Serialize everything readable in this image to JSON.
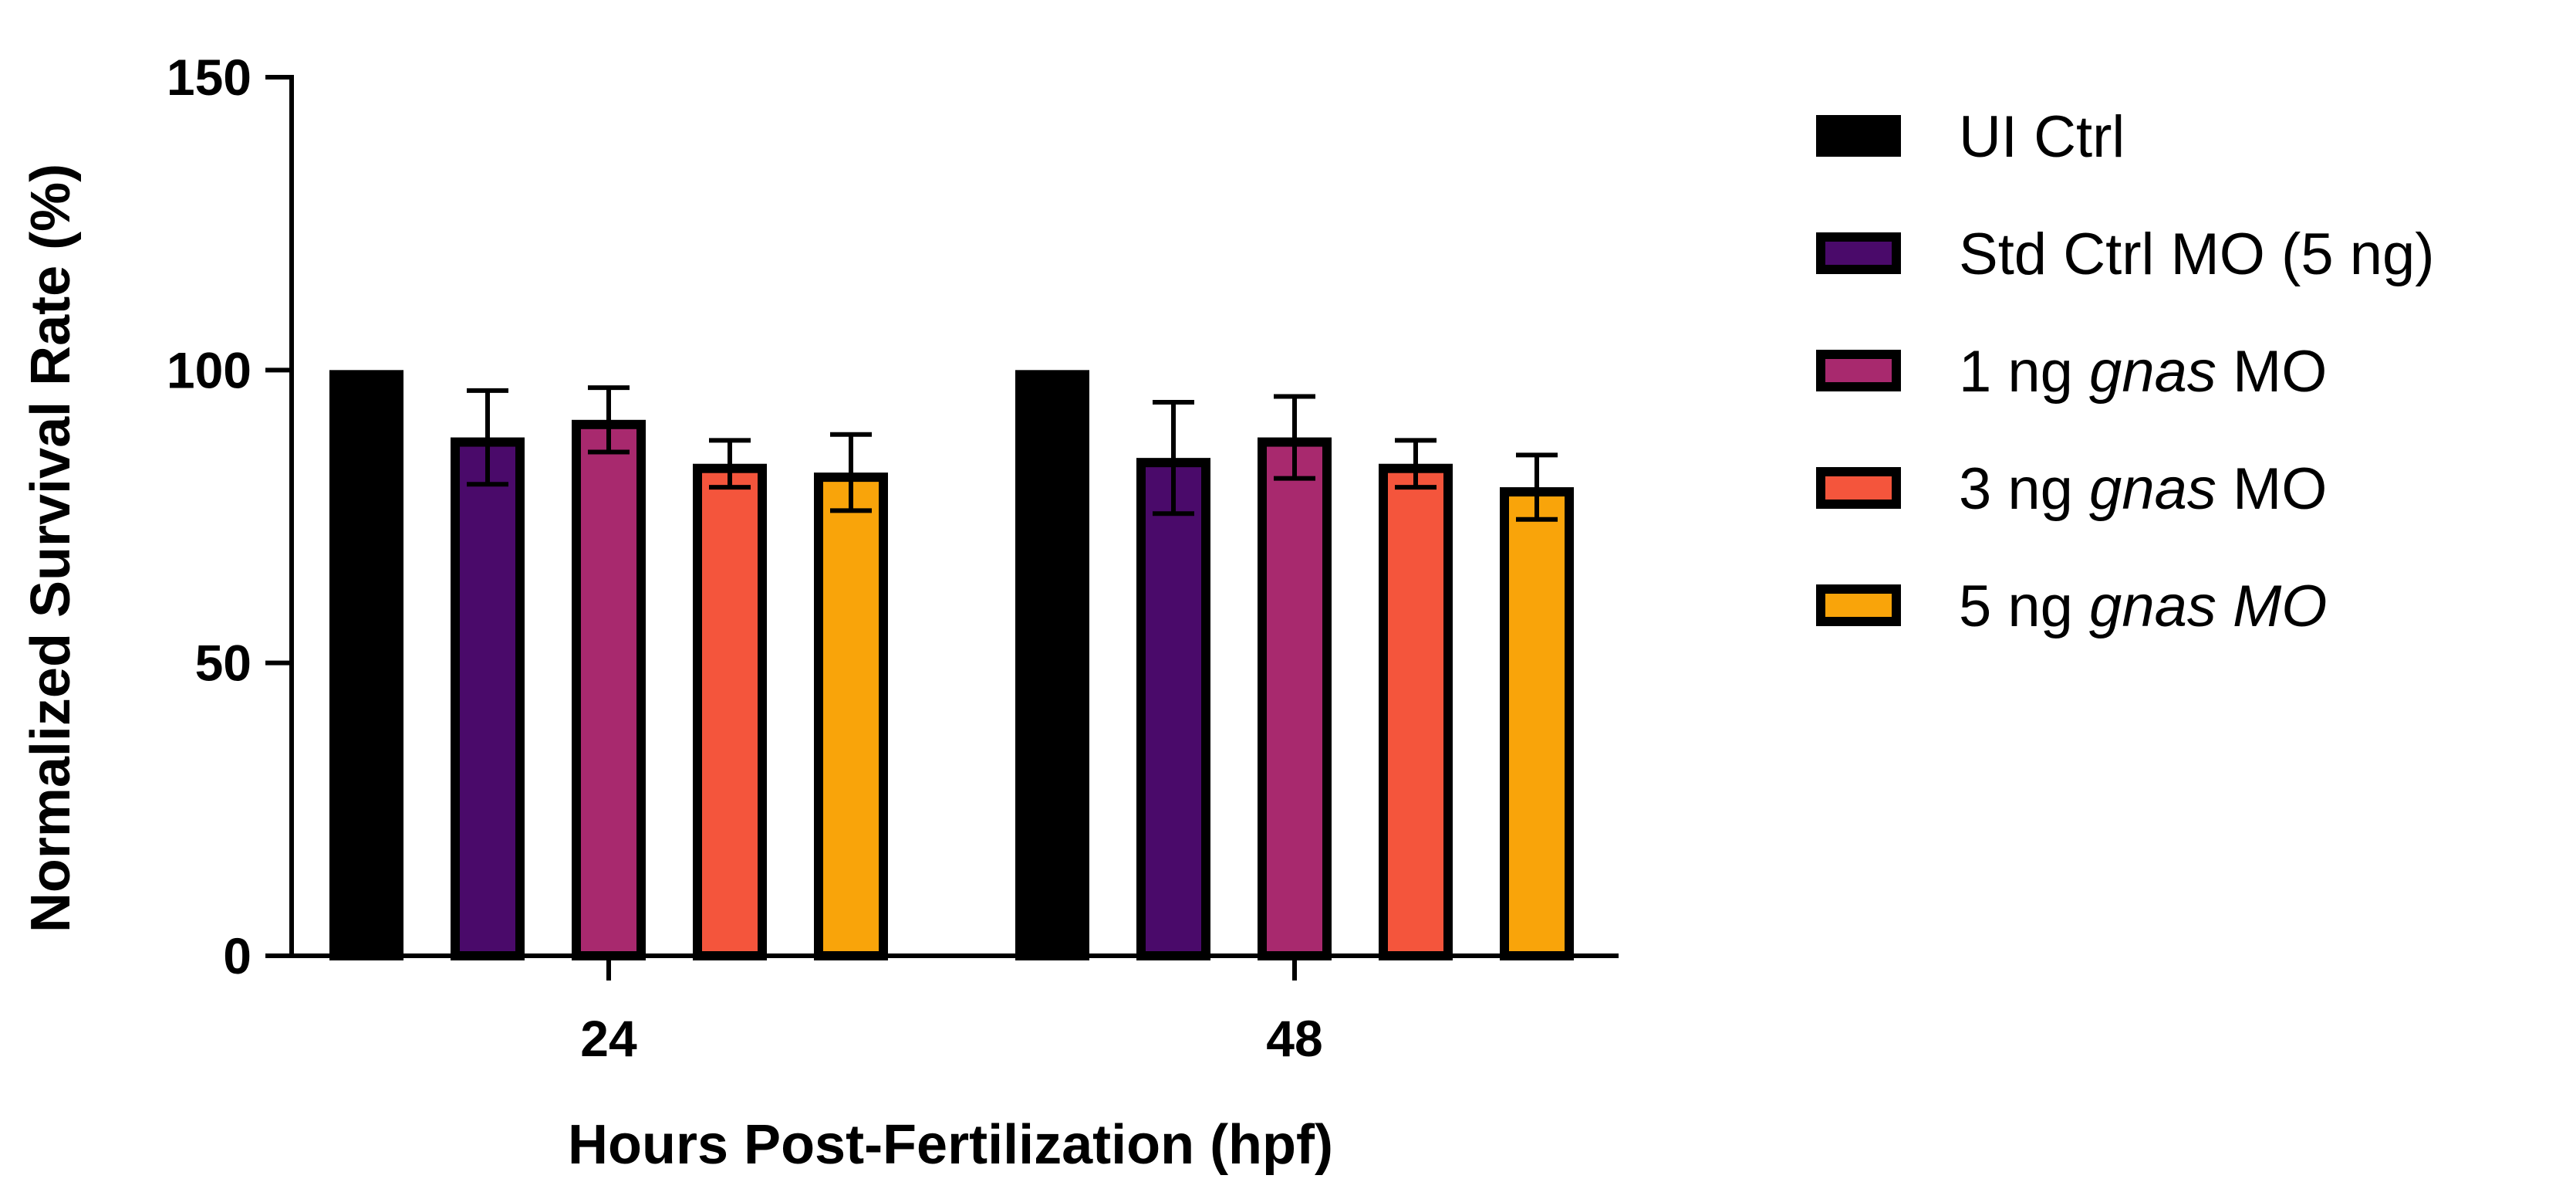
{
  "chart_data": {
    "type": "bar",
    "title": "",
    "xlabel": "Hours Post-Fertilization (hpf)",
    "ylabel": "Normalized Survival Rate (%)",
    "ylim": [
      0,
      150
    ],
    "yticks": [
      0,
      50,
      100,
      150
    ],
    "categories": [
      "24",
      "48"
    ],
    "grid": false,
    "legend_position": "right",
    "series": [
      {
        "name": "UI Ctrl",
        "name_parts": [
          {
            "text": "UI Ctrl",
            "italic": false
          }
        ],
        "color": "#000000",
        "values": [
          100,
          100
        ],
        "errors": [
          0,
          0
        ]
      },
      {
        "name": "Std Ctrl MO (5 ng)",
        "name_parts": [
          {
            "text": "Std Ctrl MO (5 ng)",
            "italic": false
          }
        ],
        "color": "#4a0a6a",
        "values": [
          88.5,
          85
        ],
        "errors": [
          8,
          9.5
        ]
      },
      {
        "name": "1 ng gnas MO",
        "name_parts": [
          {
            "text": "1 ng ",
            "italic": false
          },
          {
            "text": "gnas",
            "italic": true
          },
          {
            "text": " MO",
            "italic": false
          }
        ],
        "color": "#a8296e",
        "values": [
          91.5,
          88.5
        ],
        "errors": [
          5.5,
          7
        ]
      },
      {
        "name": "3 ng gnas MO",
        "name_parts": [
          {
            "text": "3 ng ",
            "italic": false
          },
          {
            "text": "gnas",
            "italic": true
          },
          {
            "text": " MO",
            "italic": false
          }
        ],
        "color": "#f4553c",
        "values": [
          84,
          84
        ],
        "errors": [
          4,
          4
        ]
      },
      {
        "name": "5 ng gnas MO",
        "name_parts": [
          {
            "text": "5 ng ",
            "italic": false
          },
          {
            "text": "gnas MO",
            "italic": true
          }
        ],
        "color": "#f9a40a",
        "values": [
          82.5,
          80
        ],
        "errors": [
          6.5,
          5.5
        ]
      }
    ]
  }
}
